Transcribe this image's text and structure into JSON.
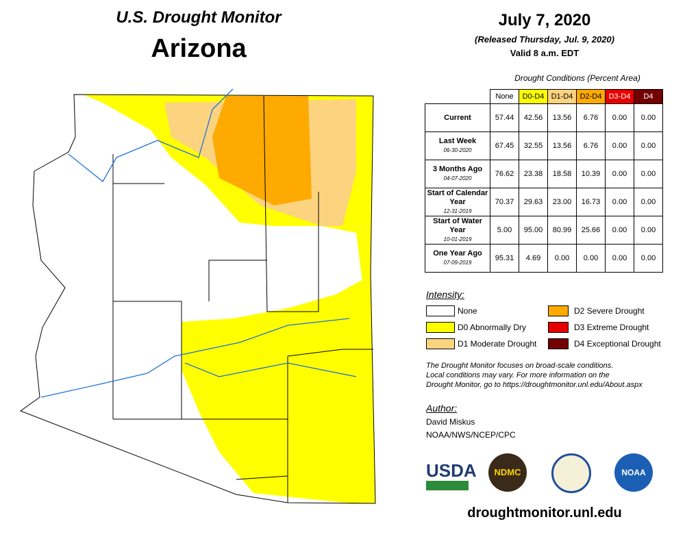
{
  "header": {
    "title": "U.S. Drought Monitor",
    "region": "Arizona",
    "date": "July 7, 2020",
    "released": "(Released Thursday, Jul. 9, 2020)",
    "valid": "Valid 8 a.m. EDT"
  },
  "table": {
    "caption": "Drought Conditions (Percent Area)",
    "columns": [
      {
        "label": "None",
        "color": "#ffffff",
        "text": "#000000"
      },
      {
        "label": "D0-D4",
        "color": "#ffff00",
        "text": "#000000"
      },
      {
        "label": "D1-D4",
        "color": "#fcd37f",
        "text": "#000000"
      },
      {
        "label": "D2-D4",
        "color": "#ffaa00",
        "text": "#000000"
      },
      {
        "label": "D3-D4",
        "color": "#e60000",
        "text": "#ffffff"
      },
      {
        "label": "D4",
        "color": "#730000",
        "text": "#ffffff"
      }
    ],
    "rows": [
      {
        "label": "Current",
        "values": [
          "57.44",
          "42.56",
          "13.56",
          "6.76",
          "0.00",
          "0.00"
        ]
      },
      {
        "label": "Last Week",
        "date": "06-30-2020",
        "values": [
          "67.45",
          "32.55",
          "13.56",
          "6.76",
          "0.00",
          "0.00"
        ]
      },
      {
        "label": "3 Months Ago",
        "date": "04-07-2020",
        "values": [
          "76.62",
          "23.38",
          "18.58",
          "10.39",
          "0.00",
          "0.00"
        ]
      },
      {
        "label": "Start of Calendar Year",
        "date": "12-31-2019",
        "values": [
          "70.37",
          "29.63",
          "23.00",
          "16.73",
          "0.00",
          "0.00"
        ]
      },
      {
        "label": "Start of Water Year",
        "date": "10-01-2019",
        "values": [
          "5.00",
          "95.00",
          "80.99",
          "25.66",
          "0.00",
          "0.00"
        ]
      },
      {
        "label": "One Year Ago",
        "date": "07-09-2019",
        "values": [
          "95.31",
          "4.69",
          "0.00",
          "0.00",
          "0.00",
          "0.00"
        ]
      }
    ]
  },
  "legend": {
    "title": "Intensity:",
    "items": [
      {
        "label": "None",
        "color": "#ffffff"
      },
      {
        "label": "D0 Abnormally Dry",
        "color": "#ffff00"
      },
      {
        "label": "D1 Moderate Drought",
        "color": "#fcd37f"
      },
      {
        "label": "D2 Severe Drought",
        "color": "#ffaa00"
      },
      {
        "label": "D3 Extreme Drought",
        "color": "#e60000"
      },
      {
        "label": "D4 Exceptional Drought",
        "color": "#730000"
      }
    ]
  },
  "note": [
    "The Drought Monitor focuses on broad-scale conditions.",
    "Local conditions may vary. For more information on the",
    "Drought Monitor, go to https://droughtmonitor.unl.edu/About.aspx"
  ],
  "author": {
    "title": "Author:",
    "name": "David Miskus",
    "org": "NOAA/NWS/NCEP/CPC"
  },
  "logos": [
    "USDA",
    "NDMC",
    "NOAA"
  ],
  "url": "droughtmonitor.unl.edu"
}
